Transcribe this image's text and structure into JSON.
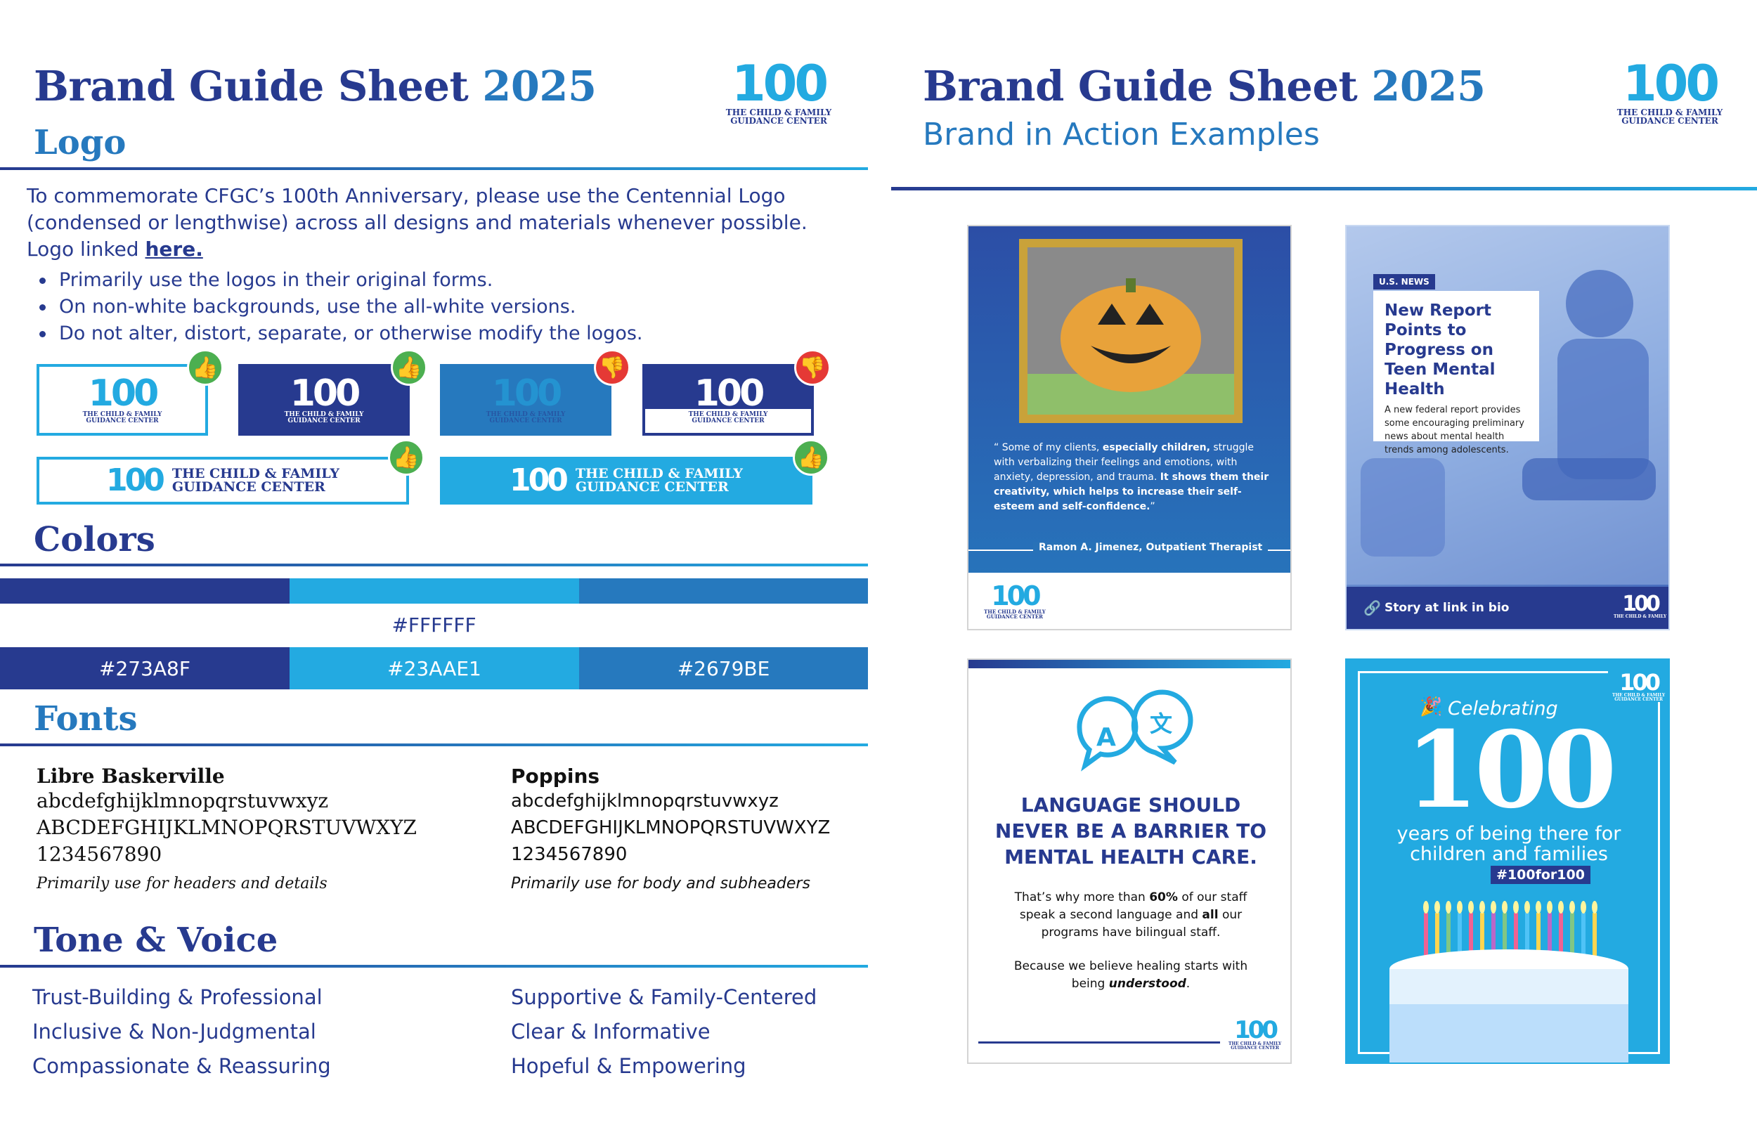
{
  "left": {
    "title": "Brand Guide Sheet",
    "year": "2025",
    "logo_heading": "Logo",
    "intro": "To commemorate CFGC’s 100th Anniversary, please use the Centennial Logo (condensed or lengthwise) across all designs and materials whenever possible. Logo linked",
    "link_text": "here.",
    "bullets": [
      "Primarily use the logos in their original forms.",
      "On non-white backgrounds, use the all-white versions.",
      "Do not alter, distort, separate, or otherwise modify the logos."
    ],
    "colors_heading": "Colors",
    "white_hex": "#FFFFFF",
    "swatches": [
      "#273A8F",
      "#23AAE1",
      "#2679BE"
    ],
    "fonts_heading": "Fonts",
    "font1": {
      "name": "Libre Baskerville",
      "lower": "abcdefghijklmnopqrstuvwxyz",
      "upper": "ABCDEFGHIJKLMNOPQRSTUVWXYZ",
      "digits": "1234567890",
      "note": "Primarily use for headers and details"
    },
    "font2": {
      "name": "Poppins",
      "lower": "abcdefghijklmnopqrstuvwxyz",
      "upper": "ABCDEFGHIJKLMNOPQRSTUVWXYZ",
      "digits": "1234567890",
      "note": "Primarily use for body and subheaders"
    },
    "tone_heading": "Tone & Voice",
    "tone_left": [
      "Trust-Building & Professional",
      "Inclusive & Non-Judgmental",
      "Compassionate & Reassuring"
    ],
    "tone_right": [
      "Supportive & Family-Centered",
      "Clear & Informative",
      "Hopeful & Empowering"
    ]
  },
  "logo_mark": {
    "number": "100",
    "line1": "THE CHILD & FAMILY",
    "line2": "GUIDANCE CENTER",
    "long_line1": "THE CHILD & FAMILY",
    "long_line2": "GUIDANCE CENTER"
  },
  "right": {
    "title": "Brand Guide Sheet",
    "year": "2025",
    "subtitle": "Brand in Action Examples",
    "quote_card": {
      "quote_plain1": "Some of my clients,",
      "quote_bold1": "especially children,",
      "quote_plain2": "struggle with verbalizing their feelings and emotions, with anxiety, depression, and trauma.",
      "quote_bold2": "It shows them their creativity, which helps to increase their self-esteem and self-confidence.",
      "attribution": "Ramon A. Jimenez, Outpatient Therapist"
    },
    "news_card": {
      "badge": "U.S. NEWS",
      "headline": "New Report Points to Progress on Teen Mental Health",
      "body": "A new federal report provides some encouraging preliminary news about mental health trends among adolescents.",
      "footer": "Story at link in bio"
    },
    "language_card": {
      "headline": "LANGUAGE SHOULD NEVER BE A BARRIER TO MENTAL HEALTH CARE.",
      "p1_a": "That’s why more than",
      "p1_b": "60%",
      "p1_c": "of our staff speak a second language and",
      "p1_d": "all",
      "p1_e": "our programs have bilingual staff.",
      "p2_a": "Because we believe healing starts with being",
      "p2_b": "understood",
      "p2_c": "."
    },
    "celebrate_card": {
      "kicker": "Celebrating",
      "number": "100",
      "line1": "years of being there for",
      "line2": "children and families",
      "hashtag": "#100for100"
    }
  },
  "colors": {
    "navy": "#273A8F",
    "sky": "#23AAE1",
    "mid": "#2679BE",
    "thumb_up": "#4CAF50",
    "thumb_down": "#E53935"
  },
  "icons": [
    "thumbs-up-icon",
    "thumbs-down-icon",
    "link-icon",
    "party-popper-icon",
    "translate-bubbles-icon",
    "quote-icon"
  ]
}
